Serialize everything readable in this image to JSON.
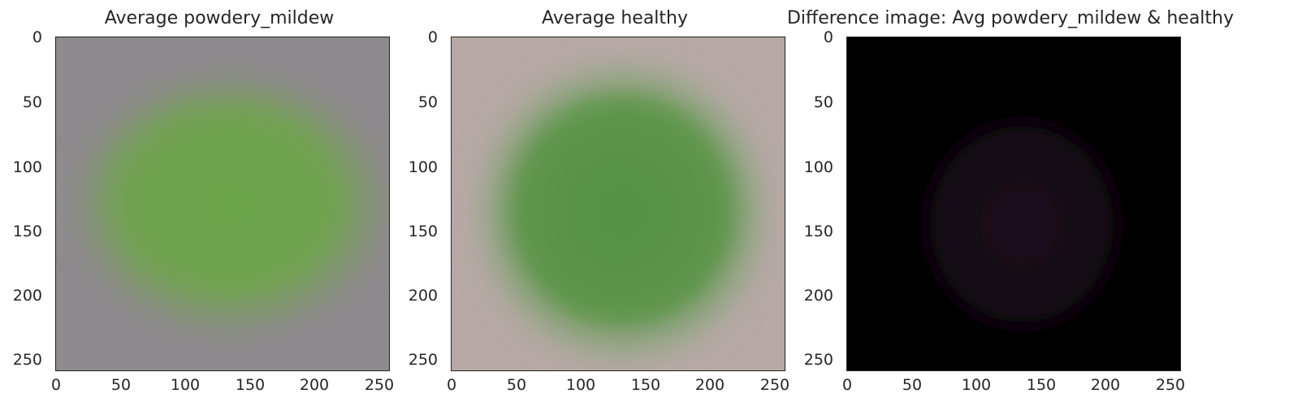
{
  "panels": [
    {
      "title": "Average powdery_mildew",
      "xticks": [
        "0",
        "50",
        "100",
        "150",
        "200",
        "250"
      ],
      "yticks": [
        "0",
        "50",
        "100",
        "150",
        "200",
        "250"
      ],
      "background": "#8f8a8e",
      "blob": "#6ea34e"
    },
    {
      "title": "Average healthy",
      "xticks": [
        "0",
        "50",
        "100",
        "150",
        "200",
        "250"
      ],
      "yticks": [
        "0",
        "50",
        "100",
        "150",
        "200",
        "250"
      ],
      "background": "#b7a9a6",
      "blob": "#5b9448"
    },
    {
      "title": "Difference image: Avg powdery_mildew & healthy",
      "xticks": [
        "0",
        "50",
        "100",
        "150",
        "200",
        "250"
      ],
      "yticks": [
        "0",
        "50",
        "100",
        "150",
        "200",
        "250"
      ],
      "background": "#000000",
      "blob": "#1c0f1b"
    }
  ]
}
